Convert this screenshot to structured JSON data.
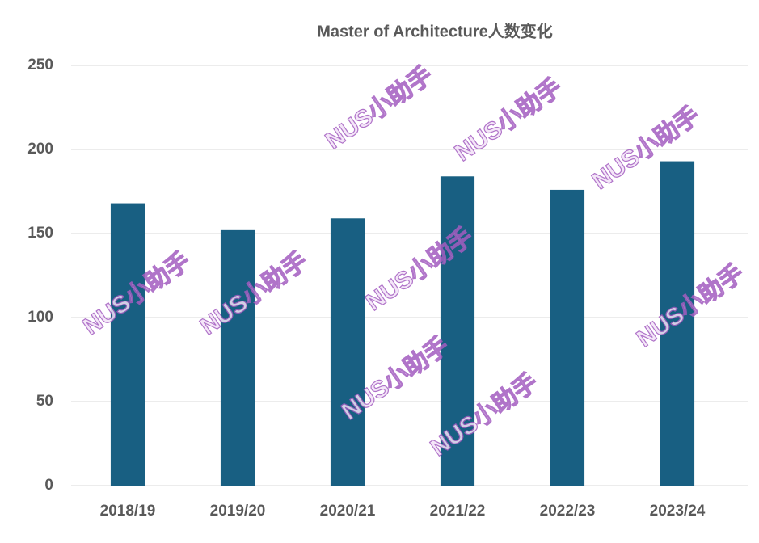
{
  "chart_data": {
    "type": "bar",
    "title": "Master of Architecture人数变化",
    "categories": [
      "2018/19",
      "2019/20",
      "2020/21",
      "2021/22",
      "2022/23",
      "2023/24"
    ],
    "values": [
      168,
      152,
      159,
      184,
      176,
      193
    ],
    "color": "#185f82",
    "ylim": [
      0,
      250
    ],
    "yticks": [
      0,
      50,
      100,
      150,
      200,
      250
    ],
    "grid": true,
    "watermark": "NUS小助手"
  }
}
